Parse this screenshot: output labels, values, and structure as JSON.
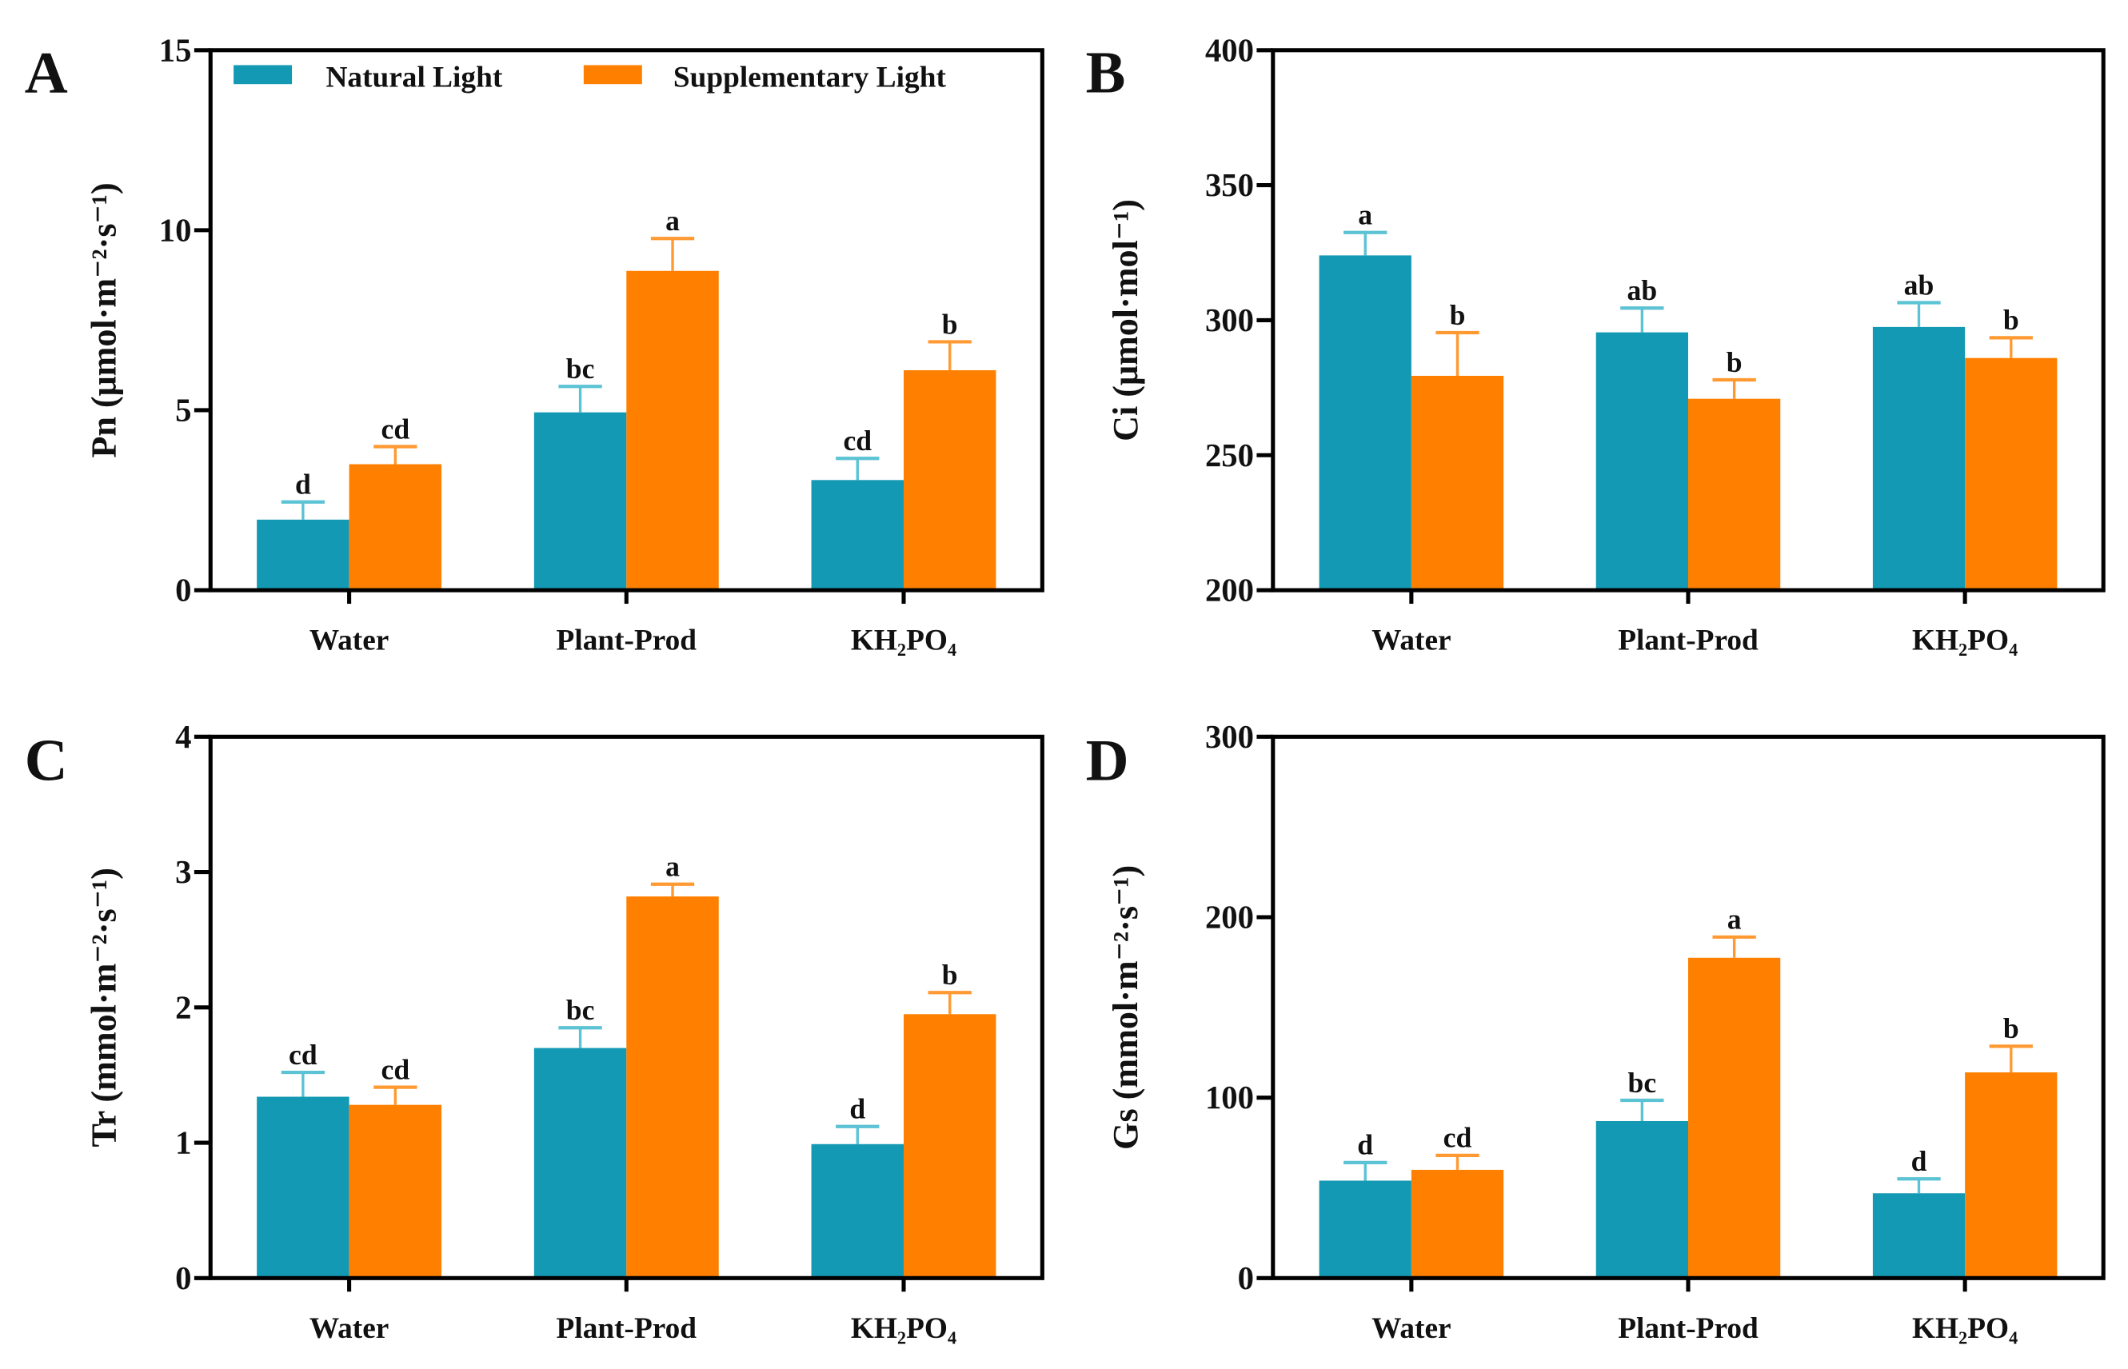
{
  "colors": {
    "natural": "#1399b3",
    "natural_err": "#5cc3d4",
    "supplementary": "#ff8000",
    "supplementary_err": "#ff9a33",
    "axis": "#000000"
  },
  "legend": {
    "natural": "Natural Light",
    "supplementary": "Supplementary Light",
    "placement": "top"
  },
  "chart_data": [
    {
      "panel": "A",
      "type": "bar",
      "categories": [
        "Water",
        "Plant-Prod",
        "KH₂PO₄"
      ],
      "ylabel": "Pn (μmol·m⁻²·s⁻¹)",
      "xlabel": "",
      "ylim": [
        0,
        15
      ],
      "yticks": [
        0,
        5,
        10,
        15
      ],
      "series": [
        {
          "name": "Natural Light",
          "values": [
            1.96,
            4.94,
            3.06
          ],
          "errors": [
            0.49,
            0.72,
            0.6
          ],
          "letters": [
            "d",
            "bc",
            "cd"
          ]
        },
        {
          "name": "Supplementary Light",
          "values": [
            3.5,
            8.87,
            6.11
          ],
          "errors": [
            0.49,
            0.9,
            0.79
          ],
          "letters": [
            "cd",
            "a",
            "b"
          ]
        }
      ]
    },
    {
      "panel": "B",
      "type": "bar",
      "categories": [
        "Water",
        "Plant-Prod",
        "KH₂PO₄"
      ],
      "ylabel": "Ci (μmol·mol⁻¹)",
      "xlabel": "",
      "ylim": [
        200,
        400
      ],
      "yticks": [
        200,
        250,
        300,
        350,
        400
      ],
      "series": [
        {
          "name": "Natural Light",
          "values": [
            324,
            295.5,
            297.5
          ],
          "errors": [
            8.5,
            9,
            9
          ],
          "letters": [
            "a",
            "ab",
            "ab"
          ]
        },
        {
          "name": "Supplementary Light",
          "values": [
            279.4,
            270.9,
            286
          ],
          "errors": [
            16,
            7,
            7.5
          ],
          "letters": [
            "b",
            "b",
            "b"
          ]
        }
      ]
    },
    {
      "panel": "C",
      "type": "bar",
      "categories": [
        "Water",
        "Plant-Prod",
        "KH₂PO₄"
      ],
      "ylabel": "Tr (mmol·m⁻²·s⁻¹)",
      "xlabel": "",
      "ylim": [
        0,
        4
      ],
      "yticks": [
        0,
        1,
        2,
        3,
        4
      ],
      "series": [
        {
          "name": "Natural Light",
          "values": [
            1.34,
            1.7,
            0.99
          ],
          "errors": [
            0.18,
            0.15,
            0.13
          ],
          "letters": [
            "cd",
            "bc",
            "d"
          ]
        },
        {
          "name": "Supplementary Light",
          "values": [
            1.28,
            2.82,
            1.95
          ],
          "errors": [
            0.13,
            0.09,
            0.16
          ],
          "letters": [
            "cd",
            "a",
            "b"
          ]
        }
      ]
    },
    {
      "panel": "D",
      "type": "bar",
      "categories": [
        "Water",
        "Plant-Prod",
        "KH₂PO₄"
      ],
      "ylabel": "Gs (mmol·m⁻²·s⁻¹)",
      "xlabel": "",
      "ylim": [
        0,
        300
      ],
      "yticks": [
        0,
        100,
        200,
        300
      ],
      "series": [
        {
          "name": "Natural Light",
          "values": [
            54,
            87,
            47
          ],
          "errors": [
            10,
            11.5,
            8
          ],
          "letters": [
            "d",
            "bc",
            "d"
          ]
        },
        {
          "name": "Supplementary Light",
          "values": [
            60,
            177.5,
            114
          ],
          "errors": [
            8,
            11.5,
            14.5
          ],
          "letters": [
            "cd",
            "a",
            "b"
          ]
        }
      ]
    }
  ]
}
